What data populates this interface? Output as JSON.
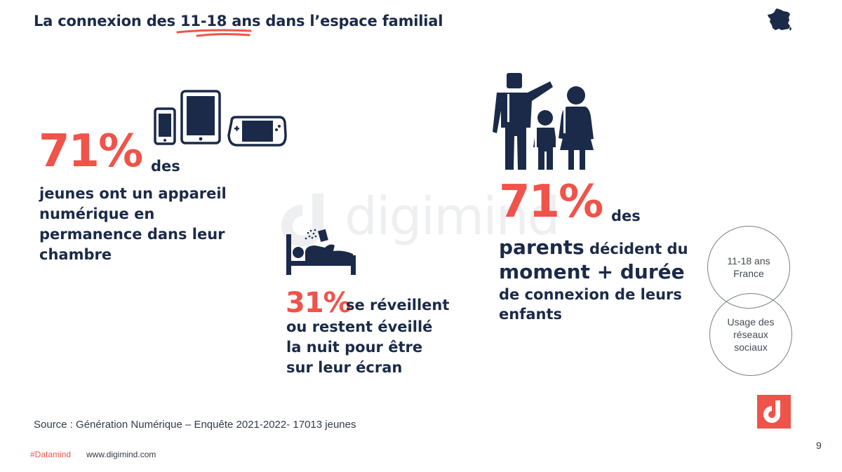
{
  "header": {
    "title_before": "La connexion des ",
    "title_highlight": "11-18 ans",
    "title_after": " dans l’espace familial"
  },
  "watermark": {
    "text": "digimind"
  },
  "stat_devices": {
    "value": "71%",
    "suffix": "des",
    "lines": [
      "jeunes ont un appareil",
      "numérique en",
      "permanence dans leur",
      "chambre"
    ]
  },
  "stat_sleep": {
    "value": "31%",
    "suffix": "se réveillent",
    "lines": [
      "ou restent éveillé",
      "la nuit pour être",
      "sur leur écran"
    ]
  },
  "stat_parents": {
    "value": "71%",
    "suffix": "des",
    "line1_big": "parents",
    "line1_small": " décident du",
    "line2": "moment + durée",
    "line3": "de connexion de leurs",
    "line4": "enfants"
  },
  "venn": {
    "top_lines": [
      "11-18 ans",
      "France"
    ],
    "bottom_lines": [
      "Usage des",
      "réseaux",
      "sociaux"
    ]
  },
  "footer": {
    "source": "Source : Génération Numérique – Enquête 2021-2022- 17013 jeunes",
    "hashtag": "#Datamind",
    "url": "www.digimind.com",
    "page_number": "9"
  },
  "colors": {
    "accent": "#f0534a",
    "navy": "#1b2a48"
  },
  "icons": [
    "france-map-icon",
    "devices-icon",
    "bed-screen-icon",
    "family-icon",
    "digimind-logo-icon"
  ]
}
